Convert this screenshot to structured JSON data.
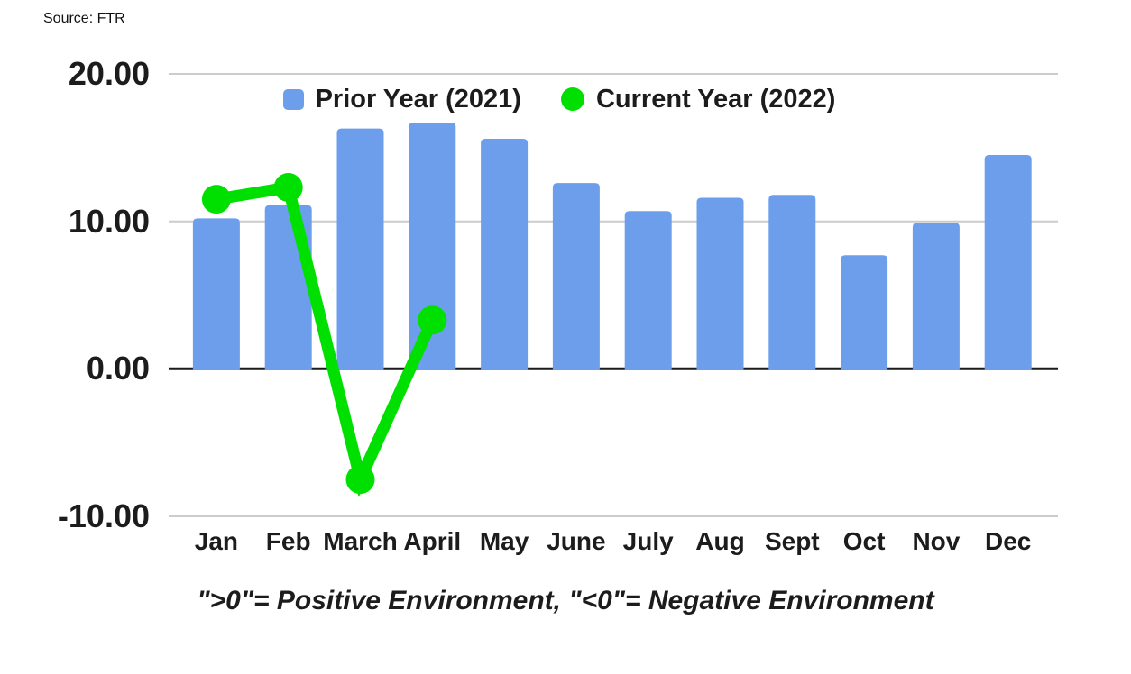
{
  "source_label": "Source: FTR",
  "caption": "\">0\"= Positive Environment, \"<0\"= Negative Environment",
  "colors": {
    "bar": "#6d9eeb",
    "line": "#00e000",
    "grid": "#cccccc",
    "axis": "#1a1a1a",
    "text": "#1c1c1c"
  },
  "chart_data": {
    "type": "bar",
    "title": "",
    "xlabel": "",
    "ylabel": "",
    "categories": [
      "Jan",
      "Feb",
      "March",
      "April",
      "May",
      "June",
      "July",
      "Aug",
      "Sept",
      "Oct",
      "Nov",
      "Dec"
    ],
    "series": [
      {
        "name": "Prior Year (2021)",
        "type": "bar",
        "color": "#6d9eeb",
        "values": [
          10.2,
          11.1,
          16.3,
          16.7,
          15.6,
          12.6,
          10.7,
          11.6,
          11.8,
          7.7,
          9.9,
          14.5
        ]
      },
      {
        "name": "Current Year (2022)",
        "type": "line",
        "color": "#00e000",
        "values": [
          11.5,
          12.3,
          -7.5,
          3.3,
          null,
          null,
          null,
          null,
          null,
          null,
          null,
          null
        ]
      }
    ],
    "yticks": [
      20,
      10,
      0,
      -10
    ],
    "ytick_labels": [
      "20.00",
      "10.00",
      "0.00",
      "-10.00"
    ],
    "ylim": [
      -10,
      20
    ],
    "grid": true,
    "legend_position": "top"
  }
}
